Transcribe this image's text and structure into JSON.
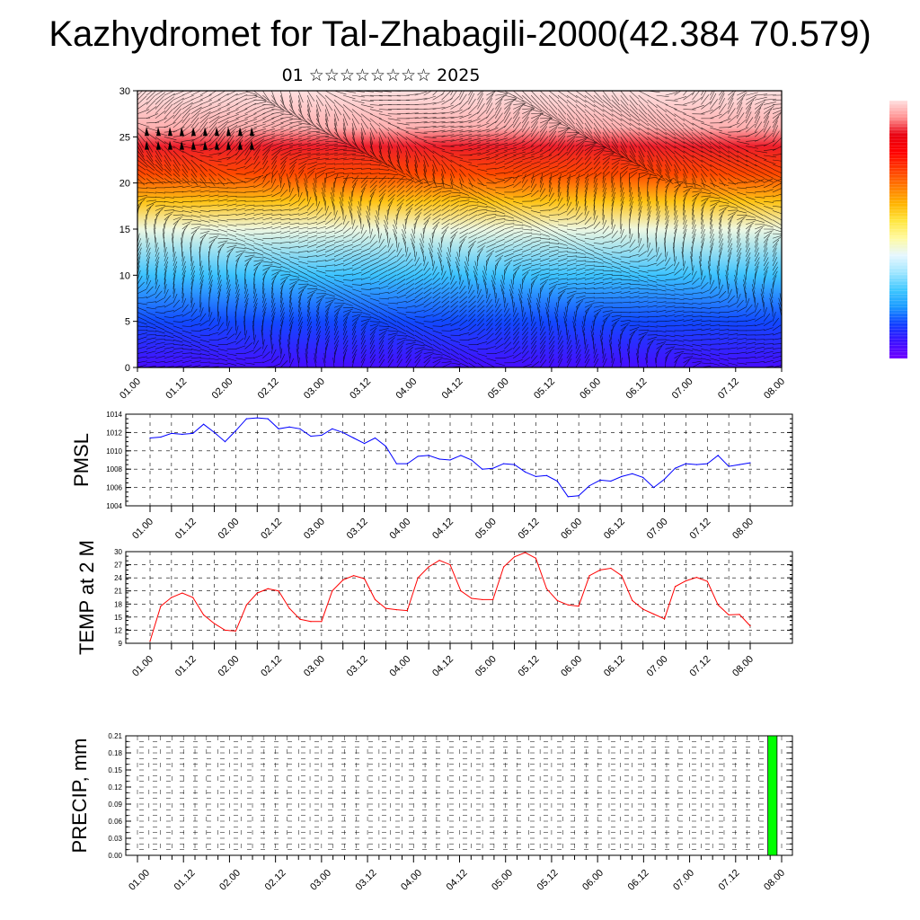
{
  "header": {
    "title": "Kazhydromet for Tal-Zhabagili-2000(42.384 70.579)",
    "subtitle": "01 ☆☆☆☆☆☆☆☆ 2025"
  },
  "colors": {
    "pmsl_line": "#0000ff",
    "temp_line": "#ff0000",
    "precip_bar": "#00ff00",
    "colorbar": [
      "#7000ff",
      "#3a10ff",
      "#1040ff",
      "#1a9aff",
      "#40c8ff",
      "#a0e6ff",
      "#e6f7ff",
      "#fffaa0",
      "#ffe640",
      "#ffb400",
      "#ff7a00",
      "#ff3c00",
      "#ff0000",
      "#e80010",
      "#ff9090",
      "#ffe0e0"
    ]
  },
  "chart_data": [
    {
      "type": "heatmap",
      "id": "wind-temperature-cross-section",
      "title": "",
      "ylim": [
        0,
        30
      ],
      "yticks": [
        "0",
        "5",
        "10",
        "15",
        "20",
        "25",
        "30"
      ],
      "xticks": [
        "01.00",
        "01.12",
        "02.00",
        "02.12",
        "03.00",
        "03.12",
        "04.00",
        "04.12",
        "05.00",
        "05.12",
        "06.00",
        "06.12",
        "07.00",
        "07.12",
        "08.00"
      ],
      "xlim": [
        0,
        7
      ],
      "colormap": "rainbow",
      "bands": [
        {
          "y": 0,
          "level": 0.95
        },
        {
          "y": 5,
          "level": 0.86
        },
        {
          "y": 10,
          "level": 0.74
        },
        {
          "y": 15,
          "level": 0.58
        },
        {
          "y": 18,
          "level": 0.42
        },
        {
          "y": 21,
          "level": 0.28
        },
        {
          "y": 24,
          "level": 0.12
        },
        {
          "y": 26,
          "level": 0.04
        },
        {
          "y": 30,
          "level": 0.0
        }
      ],
      "wind_barbs": true
    },
    {
      "type": "line",
      "id": "pmsl",
      "ylabel": "PMSL",
      "ylim": [
        1004,
        1014
      ],
      "yticks": [
        "1004",
        "1006",
        "1008",
        "1010",
        "1012",
        "1014"
      ],
      "xticks": [
        "01.00",
        "01.12",
        "02.00",
        "02.12",
        "03.00",
        "03.12",
        "04.00",
        "04.12",
        "05.00",
        "05.12",
        "06.00",
        "06.12",
        "07.00",
        "07.12",
        "08.00"
      ],
      "xlim": [
        0,
        7
      ],
      "x": [
        0,
        0.125,
        0.25,
        0.375,
        0.5,
        0.625,
        0.75,
        0.875,
        1,
        1.125,
        1.25,
        1.375,
        1.5,
        1.625,
        1.75,
        1.875,
        2,
        2.125,
        2.25,
        2.375,
        2.5,
        2.625,
        2.75,
        2.875,
        3,
        3.125,
        3.25,
        3.375,
        3.5,
        3.625,
        3.75,
        3.875,
        4,
        4.125,
        4.25,
        4.375,
        4.5,
        4.625,
        4.75,
        4.875,
        5,
        5.125,
        5.25,
        5.375,
        5.5,
        5.625,
        5.75,
        5.875,
        6,
        6.125,
        6.25,
        6.375,
        6.5,
        6.625,
        6.75,
        6.875,
        7
      ],
      "series": [
        {
          "values": [
            1011.4,
            1011.5,
            1011.9,
            1011.8,
            1011.9,
            1012.9,
            1012.0,
            1011.0,
            1012.2,
            1013.5,
            1013.6,
            1013.5,
            1012.4,
            1012.6,
            1012.4,
            1011.6,
            1011.7,
            1012.4,
            1012.0,
            1011.4,
            1010.8,
            1011.4,
            1010.5,
            1008.6,
            1008.6,
            1009.4,
            1009.5,
            1009.1,
            1009.0,
            1009.5,
            1009.0,
            1008.0,
            1008.1,
            1008.6,
            1008.5,
            1007.7,
            1007.2,
            1007.3,
            1006.7,
            1005.0,
            1005.1,
            1006.2,
            1006.8,
            1006.7,
            1007.2,
            1007.5,
            1007.1,
            1006.0,
            1006.9,
            1008.1,
            1008.6,
            1008.5,
            1008.6,
            1009.5,
            1008.3,
            1008.5,
            1008.7
          ]
        }
      ]
    },
    {
      "type": "line",
      "id": "temp",
      "ylabel": "TEMP at 2 M",
      "ylim": [
        9,
        30
      ],
      "yticks": [
        "9",
        "12",
        "15",
        "18",
        "21",
        "24",
        "27",
        "30"
      ],
      "xticks": [
        "01.00",
        "01.12",
        "02.00",
        "02.12",
        "03.00",
        "03.12",
        "04.00",
        "04.12",
        "05.00",
        "05.12",
        "06.00",
        "06.12",
        "07.00",
        "07.12",
        "08.00"
      ],
      "xlim": [
        0,
        7
      ],
      "x": [
        0,
        0.125,
        0.25,
        0.375,
        0.5,
        0.625,
        0.75,
        0.875,
        1,
        1.125,
        1.25,
        1.375,
        1.5,
        1.625,
        1.75,
        1.875,
        2,
        2.125,
        2.25,
        2.375,
        2.5,
        2.625,
        2.75,
        2.875,
        3,
        3.125,
        3.25,
        3.375,
        3.5,
        3.625,
        3.75,
        3.875,
        4,
        4.125,
        4.25,
        4.375,
        4.5,
        4.625,
        4.75,
        4.875,
        5,
        5.125,
        5.25,
        5.375,
        5.5,
        5.625,
        5.75,
        5.875,
        6,
        6.125,
        6.25,
        6.375,
        6.5,
        6.625,
        6.75,
        6.875,
        7
      ],
      "series": [
        {
          "values": [
            9.5,
            17.5,
            19.5,
            20.5,
            19.5,
            15.5,
            13.5,
            12.0,
            11.8,
            17.8,
            20.5,
            21.5,
            21.0,
            17.0,
            14.5,
            14.0,
            14.0,
            21.0,
            23.5,
            24.5,
            23.8,
            19.0,
            17.0,
            16.7,
            16.5,
            24.0,
            26.5,
            28.0,
            27.0,
            21.0,
            19.3,
            19.0,
            19.0,
            26.5,
            28.8,
            29.8,
            28.5,
            21.5,
            18.8,
            17.8,
            17.5,
            24.5,
            25.8,
            26.2,
            24.5,
            18.8,
            16.8,
            15.7,
            14.6,
            22.0,
            23.3,
            24.1,
            23.2,
            17.8,
            15.5,
            15.6,
            13.0
          ]
        }
      ]
    },
    {
      "type": "bar",
      "id": "precip",
      "ylabel": "PRECIP, mm",
      "ylim": [
        0,
        0.21
      ],
      "yticks": [
        "0.00",
        "0.03",
        "0.06",
        "0.09",
        "0.12",
        "0.15",
        "0.18",
        "0.21"
      ],
      "xticks": [
        "01.00",
        "01.12",
        "02.00",
        "02.12",
        "03.00",
        "03.12",
        "04.00",
        "04.12",
        "05.00",
        "05.12",
        "06.00",
        "06.12",
        "07.00",
        "07.12",
        "08.00"
      ],
      "xlim": [
        0,
        7
      ],
      "bars": [
        {
          "x_start": 6.85,
          "x_end": 6.95,
          "value": 0.21
        }
      ]
    }
  ]
}
